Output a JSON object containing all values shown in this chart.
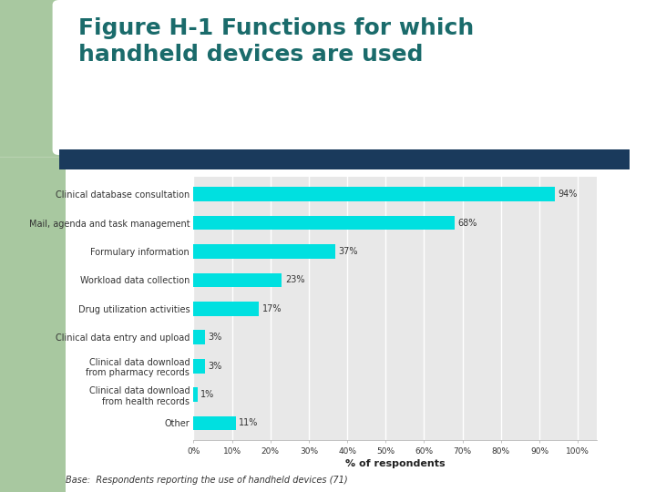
{
  "title": "Figure H-1 Functions for which\nhandheld devices are used",
  "title_color": "#1a6b6b",
  "categories": [
    "Clinical database consultation",
    "Mail, agenda and task management",
    "Formulary information",
    "Workload data collection",
    "Drug utilization activities",
    "Clinical data entry and upload",
    "Clinical data download\nfrom pharmacy records",
    "Clinical data download\nfrom health records",
    "Other"
  ],
  "values": [
    94,
    68,
    37,
    23,
    17,
    3,
    3,
    1,
    11
  ],
  "bar_color": "#00e0e0",
  "xlabel": "% of respondents",
  "xtick_labels": [
    "0%",
    "10%",
    "20%",
    "30%",
    "40%",
    "50%",
    "60%",
    "70%",
    "80%",
    "90%",
    "100%"
  ],
  "xtick_values": [
    0,
    10,
    20,
    30,
    40,
    50,
    60,
    70,
    80,
    90,
    100
  ],
  "value_labels": [
    "94%",
    "68%",
    "37%",
    "23%",
    "17%",
    "3%",
    "3%",
    "1%",
    "11%"
  ],
  "base_text": "Base:  Respondents reporting the use of handheld devices (71)",
  "header_bar_color": "#1a3a5c",
  "background_color": "#ffffff",
  "plot_bg_color": "#e8e8e8",
  "green_color": "#a8c8a0",
  "title_fontsize": 18,
  "label_fontsize": 7,
  "value_fontsize": 7
}
